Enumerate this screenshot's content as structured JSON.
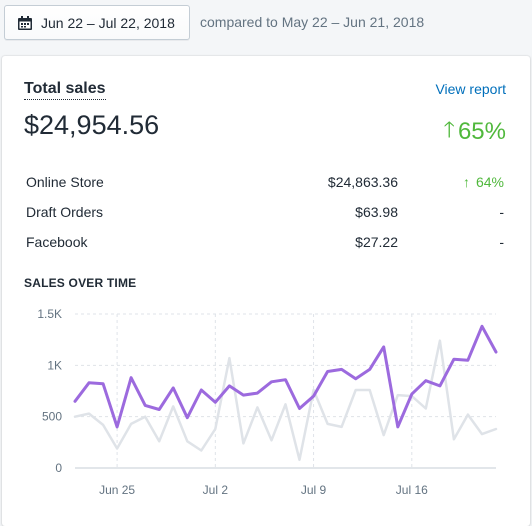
{
  "date_range": {
    "label": "Jun 22 – Jul 22, 2018",
    "icon": "calendar-icon"
  },
  "comparison_text": "compared to May 22 – Jun 21, 2018",
  "card": {
    "title": "Total sales",
    "view_report_label": "View report",
    "total_value": "$24,954.56",
    "total_change": "65%",
    "change_color": "#50b83c",
    "link_color": "#006fbb"
  },
  "breakdown": [
    {
      "name": "Online Store",
      "amount": "$24,863.36",
      "change": "64%",
      "direction": "up"
    },
    {
      "name": "Draft Orders",
      "amount": "$63.98",
      "change": "-",
      "direction": "none"
    },
    {
      "name": "Facebook",
      "amount": "$27.22",
      "change": "-",
      "direction": "none"
    }
  ],
  "chart_data": {
    "type": "line",
    "title": "SALES OVER TIME",
    "y_ticks": [
      "0",
      "500",
      "1K",
      "1.5K"
    ],
    "ylim": [
      0,
      1500
    ],
    "x_ticks": [
      {
        "label": "Jun 25",
        "day": 3
      },
      {
        "label": "Jul 2",
        "day": 10
      },
      {
        "label": "Jul 9",
        "day": 17
      },
      {
        "label": "Jul 16",
        "day": 24
      }
    ],
    "grid": true,
    "series": [
      {
        "color": "#9c6ade",
        "values": [
          650,
          830,
          820,
          400,
          880,
          610,
          570,
          780,
          490,
          760,
          640,
          800,
          710,
          730,
          840,
          860,
          580,
          700,
          940,
          960,
          870,
          960,
          1180,
          400,
          720,
          850,
          800,
          1060,
          1050,
          1380,
          1130
        ]
      },
      {
        "color": "#dfe3e8",
        "values": [
          500,
          530,
          420,
          190,
          430,
          500,
          260,
          600,
          260,
          170,
          380,
          1070,
          240,
          590,
          270,
          620,
          80,
          760,
          430,
          400,
          760,
          760,
          320,
          710,
          700,
          580,
          1240,
          280,
          520,
          330,
          380
        ]
      }
    ]
  }
}
